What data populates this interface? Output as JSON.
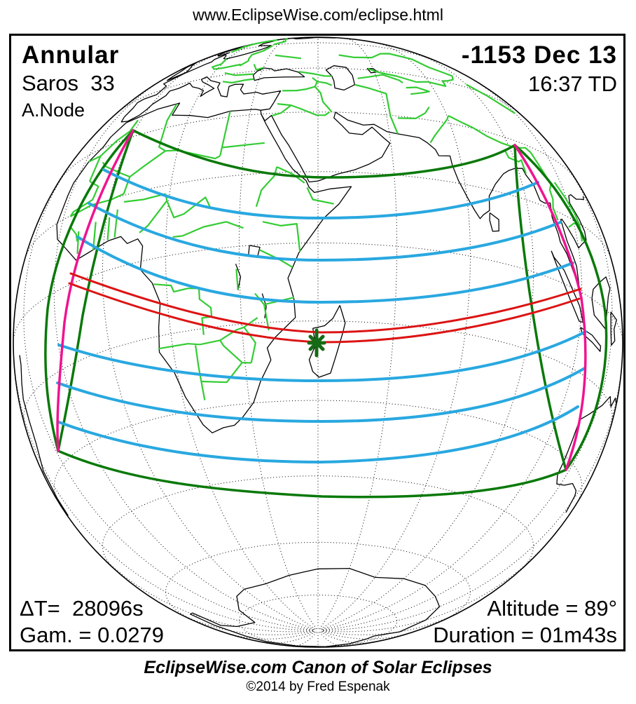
{
  "header": {
    "url": "www.EclipseWise.com/eclipse.html"
  },
  "map": {
    "type_label": "Annular",
    "saros_label": "Saros  33",
    "node_label": "A.Node",
    "date_label": "-1153 Dec 13",
    "time_label": "16:37 TD",
    "delta_t_label": "ΔT=  28096s",
    "gamma_label": "Gam. = 0.0279",
    "altitude_label": "Altitude = 89°",
    "duration_label": "Duration = 01m43s",
    "colors": {
      "coastline": "#000000",
      "country_borders": "#33CC33",
      "penumbral_limits": "#097909",
      "magnitude_contours": "#29A8E0",
      "central_path": "#DC1414",
      "rise_set_curves": "#F01390",
      "greatest_eclipse_marker": "#156B15",
      "graticule": "#000000"
    }
  },
  "footer": {
    "title": "EclipseWise.com Canon of Solar Eclipses",
    "copyright": "©2014 by Fred Espenak"
  }
}
